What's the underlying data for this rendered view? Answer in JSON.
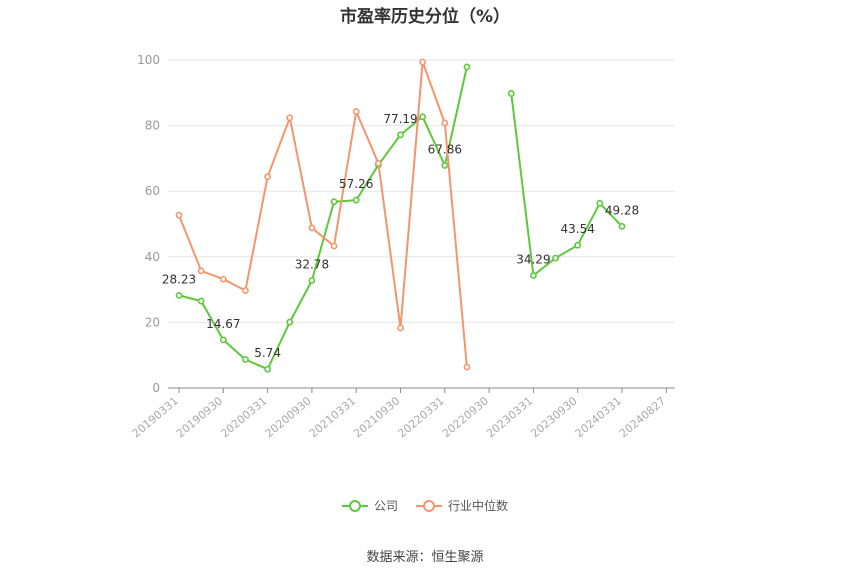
{
  "chart_data": {
    "type": "line",
    "title": "市盈率历史分位（%）",
    "x_ticks": [
      "20190331",
      "20190930",
      "20200331",
      "20200930",
      "20210331",
      "20210930",
      "20220331",
      "20220930",
      "20230331",
      "20230930",
      "20240331",
      "20240827"
    ],
    "ylim": [
      0,
      100
    ],
    "y_ticks": [
      0,
      20,
      40,
      60,
      80,
      100
    ],
    "grid": true,
    "legend_position": "bottom",
    "series": [
      {
        "name": "公司",
        "color": "#5cc93a",
        "points": [
          {
            "x": 0,
            "y": 28.23,
            "label": "28.23"
          },
          {
            "x": 0.5,
            "y": 26.5
          },
          {
            "x": 1,
            "y": 14.67,
            "label": "14.67"
          },
          {
            "x": 1.5,
            "y": 8.7
          },
          {
            "x": 2,
            "y": 5.74,
            "label": "5.74"
          },
          {
            "x": 2.5,
            "y": 20.1
          },
          {
            "x": 3,
            "y": 32.78,
            "label": "32.78"
          },
          {
            "x": 3.5,
            "y": 56.8
          },
          {
            "x": 4,
            "y": 57.26,
            "label": "57.26"
          },
          {
            "x": 4.5,
            "y": 68.0
          },
          {
            "x": 5,
            "y": 77.19,
            "label": "77.19"
          },
          {
            "x": 5.5,
            "y": 82.7
          },
          {
            "x": 6,
            "y": 67.86,
            "label": "67.86"
          },
          {
            "x": 6.5,
            "y": 97.9
          },
          null,
          {
            "x": 7.5,
            "y": 89.8
          },
          {
            "x": 8,
            "y": 34.29,
            "label": "34.29"
          },
          {
            "x": 8.5,
            "y": 39.6
          },
          {
            "x": 9,
            "y": 43.54,
            "label": "43.54"
          },
          {
            "x": 9.5,
            "y": 56.3
          },
          {
            "x": 10,
            "y": 49.28,
            "label": "49.28"
          }
        ]
      },
      {
        "name": "行业中位数",
        "color": "#f4956c",
        "points": [
          {
            "x": 0,
            "y": 52.7
          },
          {
            "x": 0.5,
            "y": 35.7
          },
          {
            "x": 1,
            "y": 33.2
          },
          {
            "x": 1.5,
            "y": 29.7
          },
          {
            "x": 2,
            "y": 64.4
          },
          {
            "x": 2.5,
            "y": 82.4
          },
          {
            "x": 3,
            "y": 48.8
          },
          {
            "x": 3.5,
            "y": 43.3
          },
          {
            "x": 4,
            "y": 84.3
          },
          {
            "x": 4.5,
            "y": 68.5
          },
          {
            "x": 5,
            "y": 18.3
          },
          {
            "x": 5.5,
            "y": 99.4
          },
          {
            "x": 6,
            "y": 80.8
          },
          {
            "x": 6.5,
            "y": 6.4
          }
        ]
      }
    ]
  },
  "source_text": "数据来源：恒生聚源"
}
